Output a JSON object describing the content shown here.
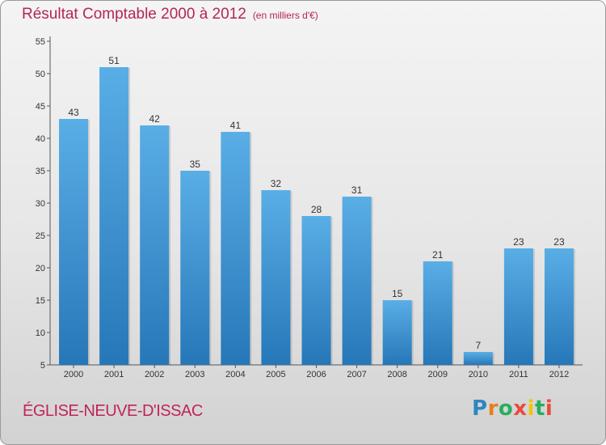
{
  "header": {
    "title": "Résultat Comptable 2000 à 2012",
    "unit": "(en milliers d'€)"
  },
  "commune": "ÉGLISE-NEUVE-D'ISSAC",
  "logo": {
    "text": "Proxiti",
    "letters": [
      "P",
      "r",
      "o",
      "x",
      "i",
      "t",
      "i"
    ],
    "colors": [
      "#2e86c1",
      "#e67e22",
      "#27ae60",
      "#e74c3c",
      "#f1c40f",
      "#27ae60",
      "#e74c3c"
    ]
  },
  "colors": {
    "bar_top": "#5aaee6",
    "bar_bottom": "#2677b8",
    "title": "#b5255a"
  },
  "chart_data": {
    "type": "bar",
    "categories": [
      "2000",
      "2001",
      "2002",
      "2003",
      "2004",
      "2005",
      "2006",
      "2007",
      "2008",
      "2009",
      "2010",
      "2011",
      "2012"
    ],
    "values": [
      43,
      51,
      42,
      35,
      41,
      32,
      28,
      31,
      15,
      21,
      7,
      23,
      23
    ],
    "title": "Résultat Comptable 2000 à 2012",
    "subtitle": "(en milliers d'€)",
    "xlabel": "",
    "ylabel": "",
    "ylim": [
      5,
      55
    ],
    "yticks": [
      5,
      10,
      15,
      20,
      25,
      30,
      35,
      40,
      45,
      50,
      55
    ],
    "grid": false,
    "legend": "none"
  }
}
